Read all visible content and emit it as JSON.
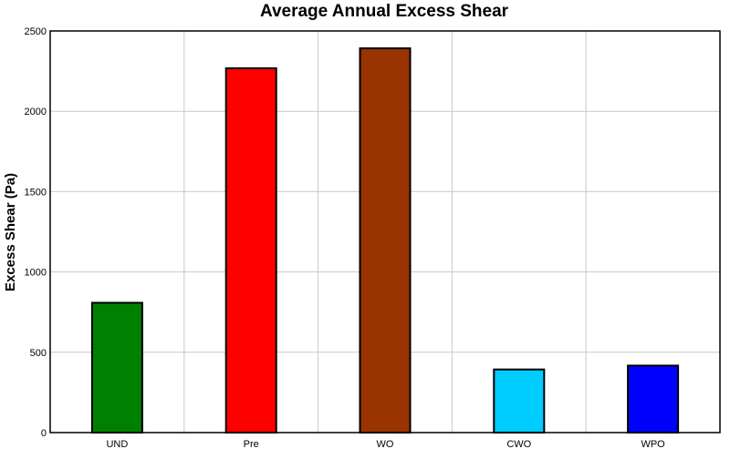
{
  "chart_data": {
    "type": "bar",
    "title": "Average Annual Excess Shear",
    "xlabel": "",
    "ylabel": "Excess Shear (Pa)",
    "categories": [
      "UND",
      "Pre",
      "WO",
      "CWO",
      "WPO"
    ],
    "values": [
      808,
      2268,
      2392,
      393,
      417
    ],
    "colors": [
      "#008000",
      "#ff0000",
      "#993300",
      "#00ccff",
      "#0000ff"
    ],
    "ylim": [
      0,
      2500
    ],
    "yticks": [
      0,
      500,
      1000,
      1500,
      2000,
      2500
    ],
    "grid": true,
    "legend": "none"
  }
}
